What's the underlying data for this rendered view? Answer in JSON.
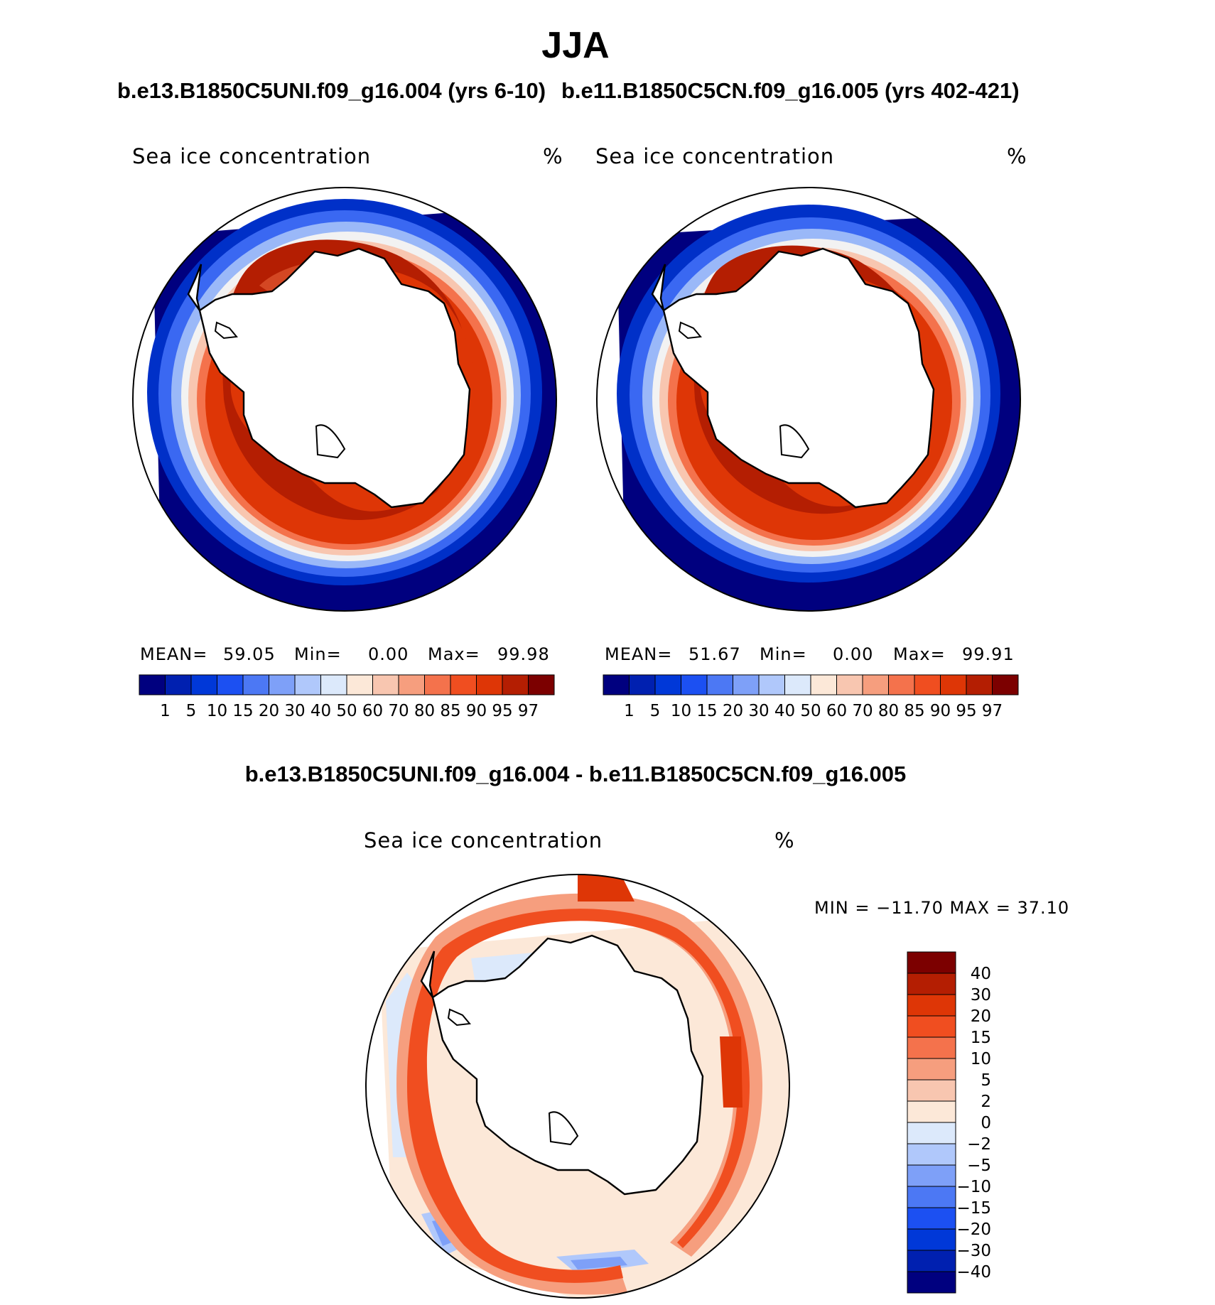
{
  "season": "JJA",
  "panels": {
    "left": {
      "case": "b.e13.B1850C5UNI.f09_g16.004 (yrs 6-10)",
      "variable": "Sea ice concentration",
      "units": "%",
      "stats": {
        "mean_label": "MEAN=",
        "mean": "59.05",
        "min_label": "Min=",
        "min": "0.00",
        "max_label": "Max=",
        "max": "99.98"
      }
    },
    "right": {
      "case": "b.e11.B1850C5CN.f09_g16.005 (yrs 402-421)",
      "variable": "Sea ice concentration",
      "units": "%",
      "stats": {
        "mean_label": "MEAN=",
        "mean": "51.67",
        "min_label": "Min=",
        "min": "0.00",
        "max_label": "Max=",
        "max": "99.91"
      }
    },
    "diff": {
      "title": "b.e13.B1850C5UNI.f09_g16.004 - b.e11.B1850C5CN.f09_g16.005",
      "variable": "Sea ice concentration",
      "units": "%",
      "minmax": "MIN = −11.70 MAX =   37.10"
    }
  },
  "colorbars": {
    "concentration": {
      "labels": [
        "1",
        "5",
        "10",
        "15",
        "20",
        "30",
        "40",
        "50",
        "60",
        "70",
        "80",
        "85",
        "90",
        "95",
        "97"
      ],
      "colors": [
        "#00007f",
        "#0020b0",
        "#0038d8",
        "#1c50f2",
        "#4c78f4",
        "#7ea0f8",
        "#b0c8fb",
        "#dce9fb",
        "#fce8d8",
        "#f8c6b0",
        "#f69e7e",
        "#f4724c",
        "#f04e20",
        "#de3606",
        "#b41e02",
        "#7c0000"
      ]
    },
    "difference": {
      "labels": [
        "40",
        "30",
        "20",
        "15",
        "10",
        "5",
        "2",
        "0",
        "−2",
        "−5",
        "−10",
        "−15",
        "−20",
        "−30",
        "−40"
      ],
      "colors": [
        "#7c0000",
        "#b41e02",
        "#de3606",
        "#f04e20",
        "#f4724c",
        "#f69e7e",
        "#f8c6b0",
        "#fce8d8",
        "#dce9fb",
        "#b0c8fb",
        "#7ea0f8",
        "#4c78f4",
        "#1c50f2",
        "#0038d8",
        "#0020b0",
        "#00007f"
      ]
    }
  }
}
